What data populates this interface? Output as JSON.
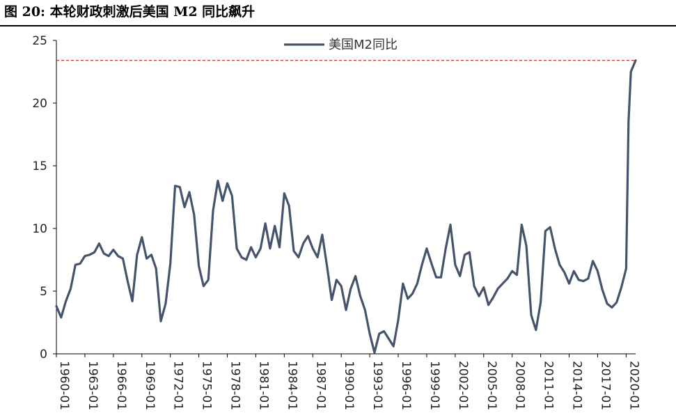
{
  "figure": {
    "title": "图 20:  本轮财政刺激后美国 M2 同比飙升"
  },
  "colors": {
    "series": "#44546A",
    "reference_line": "#C00000",
    "axis": "#000000"
  },
  "chart_data": {
    "type": "line",
    "title": "",
    "xlabel": "",
    "ylabel": "",
    "ylim": [
      0,
      25
    ],
    "xlim": [
      "1960-01",
      "2021-01"
    ],
    "yticks": [
      0,
      5,
      10,
      15,
      20,
      25
    ],
    "xticks": [
      "1960-01",
      "1963-01",
      "1966-01",
      "1969-01",
      "1972-01",
      "1975-01",
      "1978-01",
      "1981-01",
      "1984-01",
      "1987-01",
      "1990-01",
      "1993-01",
      "1996-01",
      "1999-01",
      "2002-01",
      "2005-01",
      "2008-01",
      "2011-01",
      "2014-01",
      "2017-01",
      "2020-01"
    ],
    "grid": false,
    "legend": {
      "position": "top-center",
      "entries": [
        "美国M2同比"
      ]
    },
    "reference_lines": [
      {
        "y": 23.4,
        "style": "dashed"
      }
    ],
    "series": [
      {
        "name": "美国M2同比",
        "points": [
          [
            "1960-01",
            3.8
          ],
          [
            "1960-07",
            2.9
          ],
          [
            "1961-01",
            4.2
          ],
          [
            "1961-07",
            5.2
          ],
          [
            "1962-01",
            7.1
          ],
          [
            "1962-07",
            7.2
          ],
          [
            "1963-01",
            7.8
          ],
          [
            "1963-07",
            7.9
          ],
          [
            "1964-01",
            8.1
          ],
          [
            "1964-07",
            8.8
          ],
          [
            "1965-01",
            8.0
          ],
          [
            "1965-07",
            7.8
          ],
          [
            "1966-01",
            8.3
          ],
          [
            "1966-07",
            7.8
          ],
          [
            "1967-01",
            7.6
          ],
          [
            "1967-07",
            5.8
          ],
          [
            "1968-01",
            4.2
          ],
          [
            "1968-07",
            7.9
          ],
          [
            "1969-01",
            9.3
          ],
          [
            "1969-07",
            7.6
          ],
          [
            "1970-01",
            7.9
          ],
          [
            "1970-07",
            6.8
          ],
          [
            "1971-01",
            2.6
          ],
          [
            "1971-07",
            4.0
          ],
          [
            "1972-01",
            7.2
          ],
          [
            "1972-07",
            13.4
          ],
          [
            "1973-01",
            13.3
          ],
          [
            "1973-07",
            11.7
          ],
          [
            "1974-01",
            12.9
          ],
          [
            "1974-07",
            11.1
          ],
          [
            "1975-01",
            7.0
          ],
          [
            "1975-07",
            5.4
          ],
          [
            "1976-01",
            5.9
          ],
          [
            "1976-07",
            11.4
          ],
          [
            "1977-01",
            13.8
          ],
          [
            "1977-07",
            12.2
          ],
          [
            "1978-01",
            13.6
          ],
          [
            "1978-07",
            12.6
          ],
          [
            "1979-01",
            8.4
          ],
          [
            "1979-07",
            7.7
          ],
          [
            "1980-01",
            7.5
          ],
          [
            "1980-07",
            8.5
          ],
          [
            "1981-01",
            7.7
          ],
          [
            "1981-07",
            8.4
          ],
          [
            "1982-01",
            10.4
          ],
          [
            "1982-07",
            8.4
          ],
          [
            "1983-01",
            10.2
          ],
          [
            "1983-07",
            8.5
          ],
          [
            "1984-01",
            12.8
          ],
          [
            "1984-07",
            11.8
          ],
          [
            "1985-01",
            8.2
          ],
          [
            "1985-07",
            7.7
          ],
          [
            "1986-01",
            8.8
          ],
          [
            "1986-07",
            9.4
          ],
          [
            "1987-01",
            8.4
          ],
          [
            "1987-07",
            7.7
          ],
          [
            "1988-01",
            9.5
          ],
          [
            "1988-07",
            7.0
          ],
          [
            "1989-01",
            4.3
          ],
          [
            "1989-07",
            5.9
          ],
          [
            "1990-01",
            5.4
          ],
          [
            "1990-07",
            3.5
          ],
          [
            "1991-01",
            5.2
          ],
          [
            "1991-07",
            6.2
          ],
          [
            "1992-01",
            4.6
          ],
          [
            "1992-07",
            3.5
          ],
          [
            "1993-01",
            1.6
          ],
          [
            "1993-07",
            0.1
          ],
          [
            "1994-01",
            1.6
          ],
          [
            "1994-07",
            1.8
          ],
          [
            "1995-01",
            1.2
          ],
          [
            "1995-07",
            0.6
          ],
          [
            "1996-01",
            2.7
          ],
          [
            "1996-07",
            5.6
          ],
          [
            "1997-01",
            4.4
          ],
          [
            "1997-07",
            4.8
          ],
          [
            "1998-01",
            5.6
          ],
          [
            "1998-07",
            7.1
          ],
          [
            "1999-01",
            8.4
          ],
          [
            "1999-07",
            7.2
          ],
          [
            "2000-01",
            6.1
          ],
          [
            "2000-07",
            6.1
          ],
          [
            "2001-01",
            8.4
          ],
          [
            "2001-07",
            10.3
          ],
          [
            "2002-01",
            7.1
          ],
          [
            "2002-07",
            6.2
          ],
          [
            "2003-01",
            7.9
          ],
          [
            "2003-07",
            8.1
          ],
          [
            "2004-01",
            5.4
          ],
          [
            "2004-07",
            4.6
          ],
          [
            "2005-01",
            5.3
          ],
          [
            "2005-07",
            3.9
          ],
          [
            "2006-01",
            4.5
          ],
          [
            "2006-07",
            5.2
          ],
          [
            "2007-01",
            5.6
          ],
          [
            "2007-07",
            6.0
          ],
          [
            "2008-01",
            6.6
          ],
          [
            "2008-07",
            6.3
          ],
          [
            "2009-01",
            10.3
          ],
          [
            "2009-07",
            8.6
          ],
          [
            "2010-01",
            3.1
          ],
          [
            "2010-07",
            1.9
          ],
          [
            "2011-01",
            4.1
          ],
          [
            "2011-07",
            9.8
          ],
          [
            "2012-01",
            10.1
          ],
          [
            "2012-07",
            8.4
          ],
          [
            "2013-01",
            7.1
          ],
          [
            "2013-07",
            6.5
          ],
          [
            "2014-01",
            5.6
          ],
          [
            "2014-07",
            6.6
          ],
          [
            "2015-01",
            5.9
          ],
          [
            "2015-07",
            5.8
          ],
          [
            "2016-01",
            6.0
          ],
          [
            "2016-07",
            7.4
          ],
          [
            "2017-01",
            6.6
          ],
          [
            "2017-07",
            5.1
          ],
          [
            "2018-01",
            4.0
          ],
          [
            "2018-07",
            3.7
          ],
          [
            "2019-01",
            4.1
          ],
          [
            "2019-07",
            5.3
          ],
          [
            "2020-01",
            6.8
          ],
          [
            "2020-04",
            18.5
          ],
          [
            "2020-07",
            22.5
          ],
          [
            "2021-01",
            23.4
          ]
        ]
      }
    ]
  }
}
